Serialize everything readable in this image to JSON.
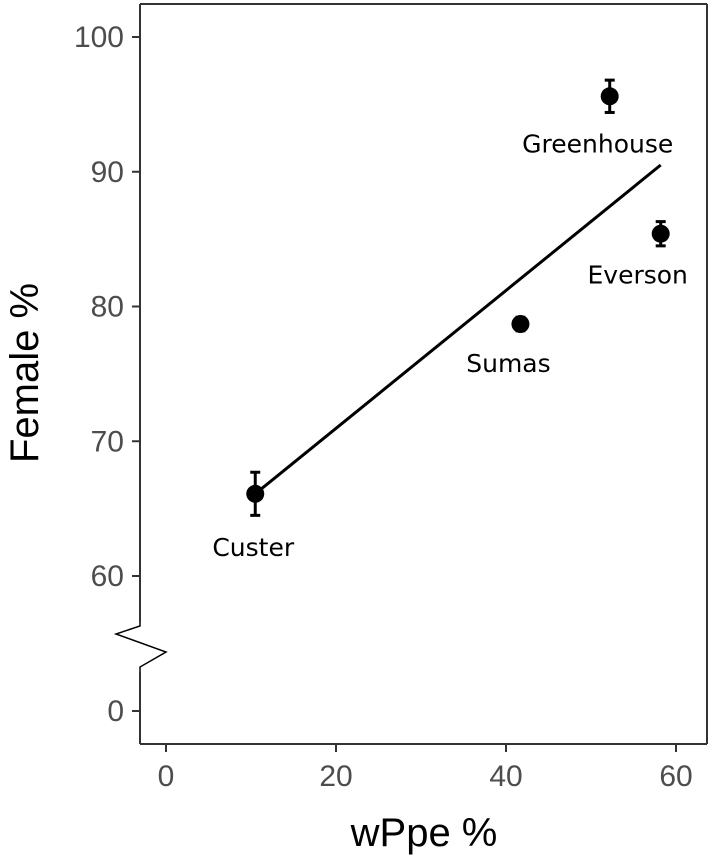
{
  "chart_data": {
    "type": "scatter",
    "title": "",
    "xlabel": "wPpe %",
    "ylabel": "Female %",
    "xlim": [
      -3,
      61.5
    ],
    "x_ticks": [
      0,
      20,
      40,
      60
    ],
    "y_ticks": [
      0,
      60,
      70,
      80,
      90,
      100
    ],
    "y_axis_break": {
      "from": 0,
      "to": 60
    },
    "grid": false,
    "legend": "none",
    "points": [
      {
        "label": "Custer",
        "x": 10.5,
        "y": 66.1,
        "error": 1.6
      },
      {
        "label": "Sumas",
        "x": 41.7,
        "y": 78.7,
        "error": 0.5
      },
      {
        "label": "Greenhouse",
        "x": 52.2,
        "y": 95.6,
        "error": 1.2
      },
      {
        "label": "Everson",
        "x": 58.2,
        "y": 85.4,
        "error": 0.9
      }
    ],
    "fit_line": {
      "x": [
        10.5,
        58.2
      ],
      "y": [
        66.1,
        90.5
      ]
    },
    "colors": {
      "points": "#000000",
      "line": "#000000",
      "axis": "#333333",
      "tick_text": "#4d4d4d"
    }
  }
}
